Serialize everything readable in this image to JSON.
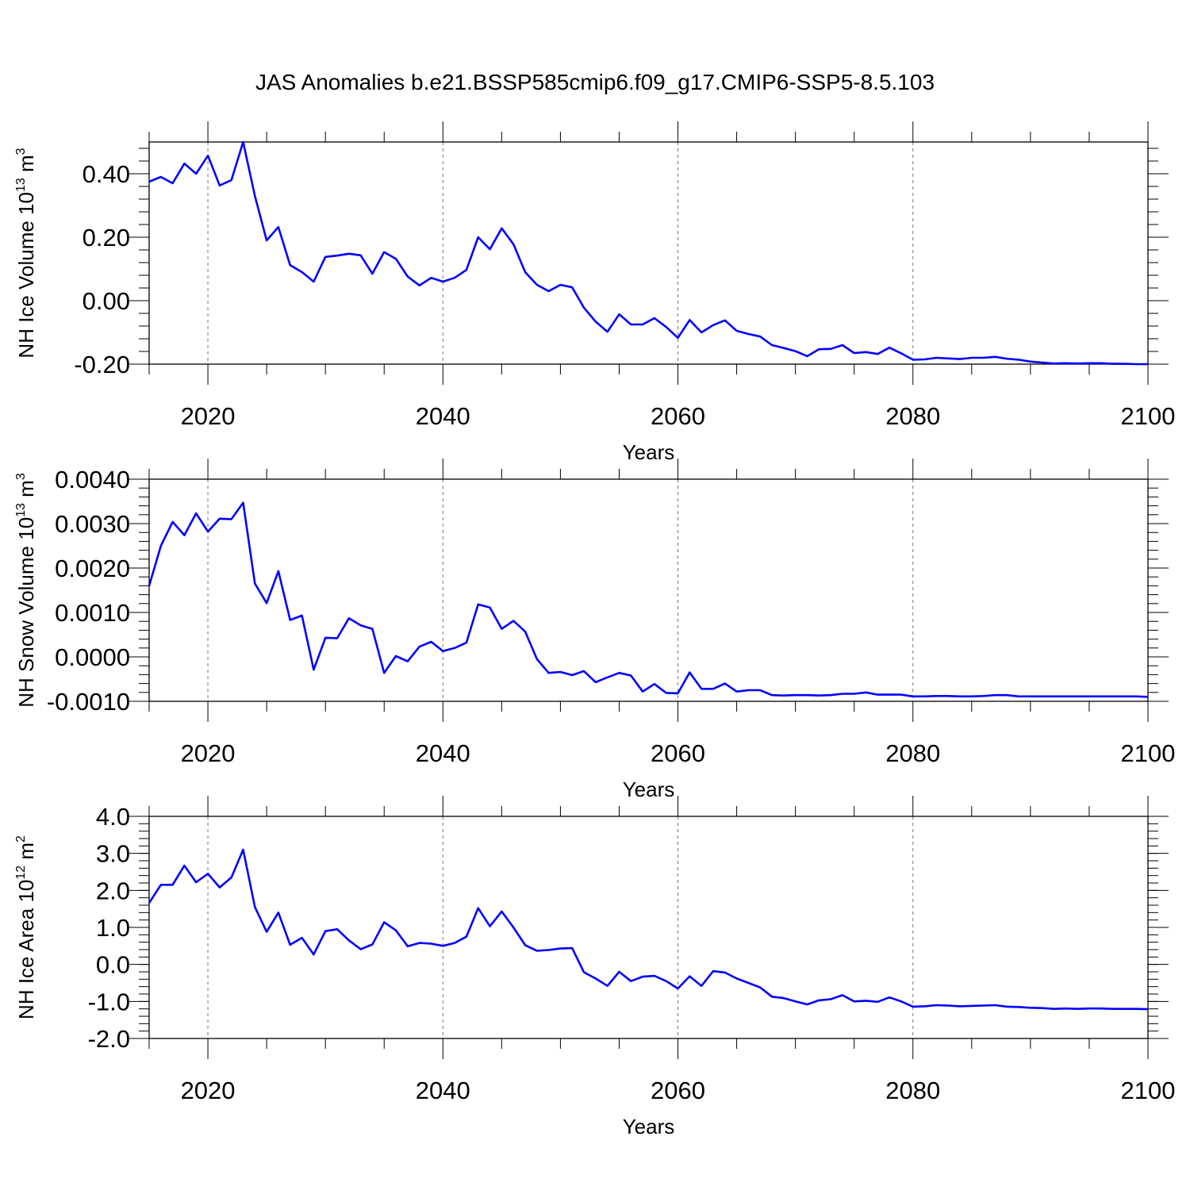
{
  "title": "JAS Anomalies b.e21.BSSP585cmip6.f09_g17.CMIP6-SSP5-8.5.103",
  "line_color": "#0000ff",
  "chart_data": [
    {
      "type": "line",
      "title": "",
      "xlabel": "Years",
      "ylabel": "NH Ice Volume 10",
      "ylabel_sup": "13",
      "ylabel_unit": " m",
      "ylabel_unit_sup": "3",
      "xlim": [
        2015,
        2100
      ],
      "ylim": [
        -0.2,
        0.5
      ],
      "xticks": [
        2020,
        2040,
        2060,
        2080,
        2100
      ],
      "xtick_labels": [
        "2020",
        "2040",
        "2060",
        "2080",
        "2100"
      ],
      "yticks": [
        -0.2,
        0.0,
        0.2,
        0.4
      ],
      "ytick_labels": [
        "-0.20",
        "0.00",
        "0.20",
        "0.40"
      ],
      "grid": "vertical dashed at major x ticks",
      "series": [
        {
          "x": [
            2015,
            2016,
            2017,
            2018,
            2019,
            2020,
            2021,
            2022,
            2023,
            2024,
            2025,
            2026,
            2027,
            2028,
            2029,
            2030,
            2031,
            2032,
            2033,
            2034,
            2035,
            2036,
            2037,
            2038,
            2039,
            2040,
            2041,
            2042,
            2043,
            2044,
            2045,
            2046,
            2047,
            2048,
            2049,
            2050,
            2051,
            2052,
            2053,
            2054,
            2055,
            2056,
            2057,
            2058,
            2059,
            2060,
            2061,
            2062,
            2063,
            2064,
            2065,
            2066,
            2067,
            2068,
            2069,
            2070,
            2071,
            2072,
            2073,
            2074,
            2075,
            2076,
            2077,
            2078,
            2079,
            2080,
            2081,
            2082,
            2083,
            2084,
            2085,
            2086,
            2087,
            2088,
            2089,
            2090,
            2091,
            2092,
            2093,
            2094,
            2095,
            2096,
            2097,
            2098,
            2099,
            2100
          ],
          "y": [
            0.375,
            0.39,
            0.37,
            0.432,
            0.4,
            0.457,
            0.363,
            0.38,
            0.5,
            0.33,
            0.19,
            0.232,
            0.112,
            0.09,
            0.06,
            0.138,
            0.142,
            0.148,
            0.143,
            0.085,
            0.153,
            0.132,
            0.076,
            0.048,
            0.072,
            0.06,
            0.072,
            0.097,
            0.2,
            0.162,
            0.228,
            0.178,
            0.09,
            0.05,
            0.03,
            0.05,
            0.042,
            -0.022,
            -0.066,
            -0.098,
            -0.043,
            -0.075,
            -0.075,
            -0.055,
            -0.083,
            -0.117,
            -0.061,
            -0.1,
            -0.077,
            -0.062,
            -0.095,
            -0.105,
            -0.113,
            -0.14,
            -0.149,
            -0.159,
            -0.175,
            -0.153,
            -0.152,
            -0.14,
            -0.165,
            -0.162,
            -0.168,
            -0.148,
            -0.166,
            -0.186,
            -0.185,
            -0.18,
            -0.182,
            -0.184,
            -0.18,
            -0.18,
            -0.177,
            -0.183,
            -0.186,
            -0.192,
            -0.195,
            -0.198,
            -0.197,
            -0.198,
            -0.197,
            -0.197,
            -0.199,
            -0.199,
            -0.2,
            -0.2
          ]
        }
      ]
    },
    {
      "type": "line",
      "title": "",
      "xlabel": "Years",
      "ylabel": "NH Snow Volume 10",
      "ylabel_sup": "13",
      "ylabel_unit": " m",
      "ylabel_unit_sup": "3",
      "xlim": [
        2015,
        2100
      ],
      "ylim": [
        -0.001,
        0.004
      ],
      "xticks": [
        2020,
        2040,
        2060,
        2080,
        2100
      ],
      "xtick_labels": [
        "2020",
        "2040",
        "2060",
        "2080",
        "2100"
      ],
      "yticks": [
        -0.001,
        0.0,
        0.001,
        0.002,
        0.003,
        0.004
      ],
      "ytick_labels": [
        "-0.0010",
        "0.0000",
        "0.0010",
        "0.0020",
        "0.0030",
        "0.0040"
      ],
      "grid": "vertical dashed at major x ticks",
      "series": [
        {
          "x": [
            2015,
            2016,
            2017,
            2018,
            2019,
            2020,
            2021,
            2022,
            2023,
            2024,
            2025,
            2026,
            2027,
            2028,
            2029,
            2030,
            2031,
            2032,
            2033,
            2034,
            2035,
            2036,
            2037,
            2038,
            2039,
            2040,
            2041,
            2042,
            2043,
            2044,
            2045,
            2046,
            2047,
            2048,
            2049,
            2050,
            2051,
            2052,
            2053,
            2054,
            2055,
            2056,
            2057,
            2058,
            2059,
            2060,
            2061,
            2062,
            2063,
            2064,
            2065,
            2066,
            2067,
            2068,
            2069,
            2070,
            2071,
            2072,
            2073,
            2074,
            2075,
            2076,
            2077,
            2078,
            2079,
            2080,
            2081,
            2082,
            2083,
            2084,
            2085,
            2086,
            2087,
            2088,
            2089,
            2090,
            2091,
            2092,
            2093,
            2094,
            2095,
            2096,
            2097,
            2098,
            2099,
            2100
          ],
          "y": [
            0.0016,
            0.0025,
            0.00304,
            0.00274,
            0.00323,
            0.00282,
            0.00311,
            0.0031,
            0.00347,
            0.00165,
            0.00121,
            0.00193,
            0.00083,
            0.00093,
            -0.00029,
            0.00043,
            0.00042,
            0.00087,
            0.00071,
            0.00063,
            -0.00036,
            2e-05,
            -0.0001,
            0.00023,
            0.00034,
            0.00013,
            0.0002,
            0.00032,
            0.00118,
            0.00111,
            0.00063,
            0.00081,
            0.00057,
            -5e-05,
            -0.00036,
            -0.00034,
            -0.00041,
            -0.00032,
            -0.00057,
            -0.00046,
            -0.00036,
            -0.00042,
            -0.00078,
            -0.00061,
            -0.00081,
            -0.00082,
            -0.00035,
            -0.00072,
            -0.00072,
            -0.0006,
            -0.00078,
            -0.00075,
            -0.00075,
            -0.00086,
            -0.00087,
            -0.00086,
            -0.00086,
            -0.00087,
            -0.00086,
            -0.00083,
            -0.00083,
            -0.0008,
            -0.00085,
            -0.00085,
            -0.00085,
            -0.00089,
            -0.00089,
            -0.00088,
            -0.00088,
            -0.00089,
            -0.00089,
            -0.00088,
            -0.00086,
            -0.00086,
            -0.00089,
            -0.00089,
            -0.00089,
            -0.00089,
            -0.00089,
            -0.00089,
            -0.00089,
            -0.00089,
            -0.00089,
            -0.00089,
            -0.00089,
            -0.0009
          ]
        }
      ]
    },
    {
      "type": "line",
      "title": "",
      "xlabel": "Years",
      "ylabel": "NH Ice Area 10",
      "ylabel_sup": "12",
      "ylabel_unit": " m",
      "ylabel_unit_sup": "2",
      "xlim": [
        2015,
        2100
      ],
      "ylim": [
        -2.0,
        4.0
      ],
      "xticks": [
        2020,
        2040,
        2060,
        2080,
        2100
      ],
      "xtick_labels": [
        "2020",
        "2040",
        "2060",
        "2080",
        "2100"
      ],
      "yticks": [
        -2.0,
        -1.0,
        0.0,
        1.0,
        2.0,
        3.0,
        4.0
      ],
      "ytick_labels": [
        "-2.0",
        "-1.0",
        "0.0",
        "1.0",
        "2.0",
        "3.0",
        "4.0"
      ],
      "grid": "vertical dashed at major x ticks",
      "series": [
        {
          "x": [
            2015,
            2016,
            2017,
            2018,
            2019,
            2020,
            2021,
            2022,
            2023,
            2024,
            2025,
            2026,
            2027,
            2028,
            2029,
            2030,
            2031,
            2032,
            2033,
            2034,
            2035,
            2036,
            2037,
            2038,
            2039,
            2040,
            2041,
            2042,
            2043,
            2044,
            2045,
            2046,
            2047,
            2048,
            2049,
            2050,
            2051,
            2052,
            2053,
            2054,
            2055,
            2056,
            2057,
            2058,
            2059,
            2060,
            2061,
            2062,
            2063,
            2064,
            2065,
            2066,
            2067,
            2068,
            2069,
            2070,
            2071,
            2072,
            2073,
            2074,
            2075,
            2076,
            2077,
            2078,
            2079,
            2080,
            2081,
            2082,
            2083,
            2084,
            2085,
            2086,
            2087,
            2088,
            2089,
            2090,
            2091,
            2092,
            2093,
            2094,
            2095,
            2096,
            2097,
            2098,
            2099,
            2100
          ],
          "y": [
            1.66,
            2.15,
            2.15,
            2.67,
            2.22,
            2.45,
            2.08,
            2.35,
            3.1,
            1.55,
            0.88,
            1.4,
            0.53,
            0.72,
            0.27,
            0.9,
            0.95,
            0.65,
            0.41,
            0.54,
            1.14,
            0.92,
            0.49,
            0.58,
            0.56,
            0.5,
            0.58,
            0.75,
            1.52,
            1.03,
            1.43,
            1.0,
            0.52,
            0.37,
            0.39,
            0.43,
            0.44,
            -0.21,
            -0.38,
            -0.58,
            -0.2,
            -0.45,
            -0.33,
            -0.31,
            -0.45,
            -0.65,
            -0.32,
            -0.58,
            -0.18,
            -0.22,
            -0.38,
            -0.5,
            -0.62,
            -0.87,
            -0.91,
            -1.0,
            -1.08,
            -0.97,
            -0.94,
            -0.83,
            -1.0,
            -0.98,
            -1.01,
            -0.89,
            -1.0,
            -1.14,
            -1.13,
            -1.1,
            -1.11,
            -1.13,
            -1.12,
            -1.11,
            -1.1,
            -1.14,
            -1.15,
            -1.17,
            -1.18,
            -1.2,
            -1.19,
            -1.2,
            -1.19,
            -1.19,
            -1.2,
            -1.2,
            -1.2,
            -1.21
          ]
        }
      ]
    }
  ]
}
